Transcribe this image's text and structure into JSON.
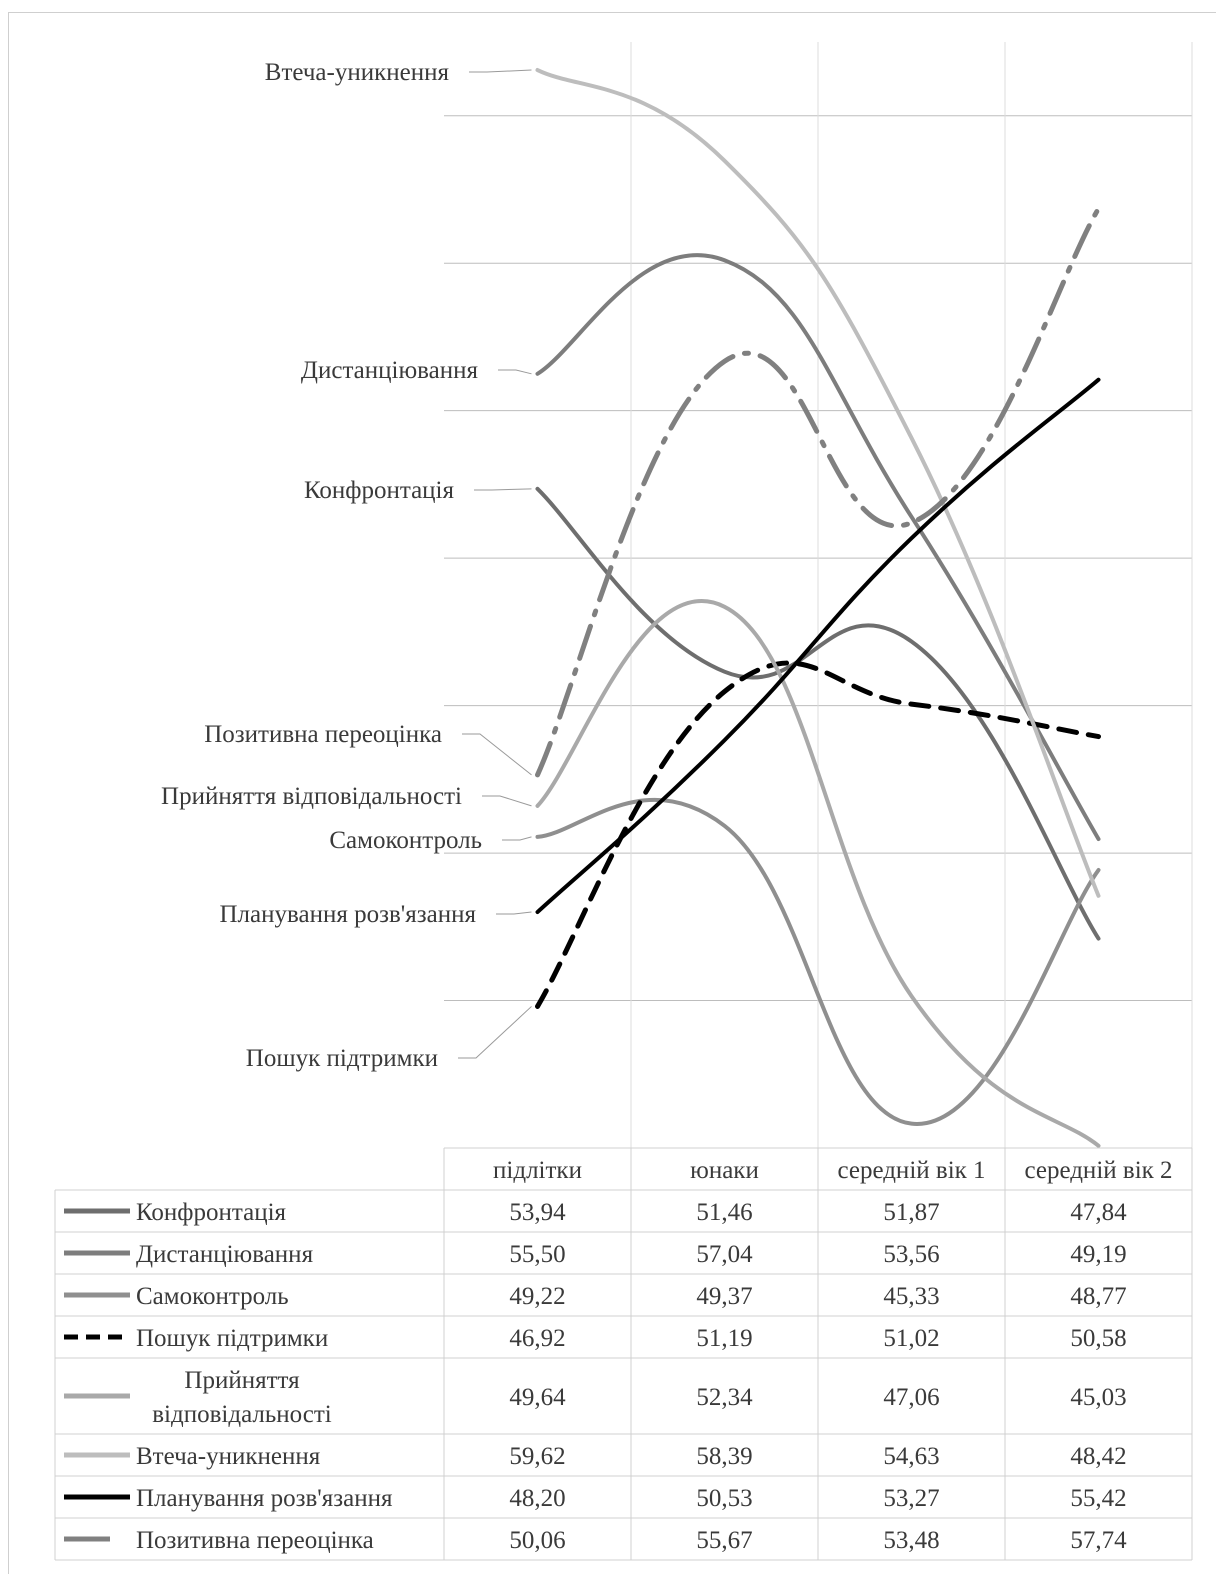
{
  "chart_data": {
    "type": "line",
    "categories": [
      "підлітки",
      "юнаки",
      "середній вік 1",
      "середній вік 2"
    ],
    "ylim": [
      45,
      60
    ],
    "grid": true,
    "legend": "data-table-bottom",
    "series": [
      {
        "name": "Конфронтація",
        "values": [
          53.94,
          51.46,
          51.87,
          47.84
        ],
        "display": [
          "53,94",
          "51,46",
          "51,87",
          "47,84"
        ],
        "color": "#6e6e6e",
        "dash": "solid"
      },
      {
        "name": "Дистанціювання",
        "values": [
          55.5,
          57.04,
          53.56,
          49.19
        ],
        "display": [
          "55,50",
          "57,04",
          "53,56",
          "49,19"
        ],
        "color": "#7d7d7d",
        "dash": "solid"
      },
      {
        "name": "Самоконтроль",
        "values": [
          49.22,
          49.37,
          45.33,
          48.77
        ],
        "display": [
          "49,22",
          "49,37",
          "45,33",
          "48,77"
        ],
        "color": "#8f8f8f",
        "dash": "solid"
      },
      {
        "name": "Пошук підтримки",
        "values": [
          46.92,
          51.19,
          51.02,
          50.58
        ],
        "display": [
          "46,92",
          "51,19",
          "51,02",
          "50,58"
        ],
        "color": "#000000",
        "dash": "dash"
      },
      {
        "name": "Прийняття відповідальності",
        "values": [
          49.64,
          52.34,
          47.06,
          45.03
        ],
        "display": [
          "49,64",
          "52,34",
          "47,06",
          "45,03"
        ],
        "color": "#a9a9a9",
        "dash": "solid"
      },
      {
        "name": "Втеча-уникнення",
        "values": [
          59.62,
          58.39,
          54.63,
          48.42
        ],
        "display": [
          "59,62",
          "58,39",
          "54,63",
          "48,42"
        ],
        "color": "#bdbdbd",
        "dash": "solid"
      },
      {
        "name": "Планування розв'язання",
        "values": [
          48.2,
          50.53,
          53.27,
          55.42
        ],
        "display": [
          "48,20",
          "50,53",
          "53,27",
          "55,42"
        ],
        "color": "#000000",
        "dash": "solid"
      },
      {
        "name": "Позитивна переоцінка",
        "values": [
          50.06,
          55.67,
          53.48,
          57.74
        ],
        "display": [
          "50,06",
          "55,67",
          "53,48",
          "57,74"
        ],
        "color": "#808080",
        "dash": "dashdot"
      }
    ]
  }
}
